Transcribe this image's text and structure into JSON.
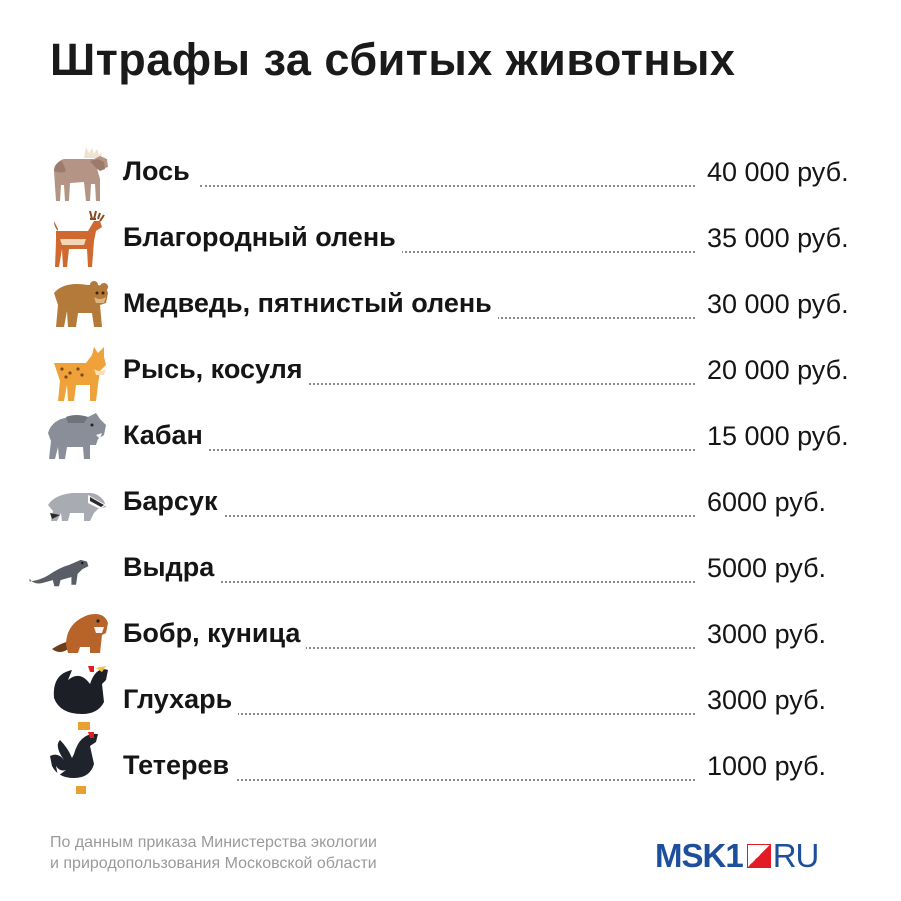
{
  "title": "Штрафы за сбитых животных",
  "rows": [
    {
      "name": "Лось",
      "price": "40 000 руб.",
      "icon": "moose-icon"
    },
    {
      "name": "Благородный олень",
      "price": "35 000 руб.",
      "icon": "red-deer-icon"
    },
    {
      "name": "Медведь, пятнистый олень",
      "price": "30 000 руб.",
      "icon": "bear-icon"
    },
    {
      "name": "Рысь, косуля",
      "price": "20 000 руб.",
      "icon": "lynx-icon"
    },
    {
      "name": "Кабан",
      "price": "15 000 руб.",
      "icon": "boar-icon"
    },
    {
      "name": "Барсук",
      "price": "6000 руб.",
      "icon": "badger-icon"
    },
    {
      "name": "Выдра",
      "price": "5000 руб.",
      "icon": "otter-icon"
    },
    {
      "name": "Бобр, куница",
      "price": "3000 руб.",
      "icon": "beaver-icon"
    },
    {
      "name": "Глухарь",
      "price": "3000 руб.",
      "icon": "capercaillie-icon"
    },
    {
      "name": "Тетерев",
      "price": "1000 руб.",
      "icon": "black-grouse-icon"
    }
  ],
  "footer": {
    "note_line1": "По данным приказа Министерства экологии",
    "note_line2": "и природопользования Московской области"
  },
  "logo": {
    "brand": "MSK1",
    "tld": "RU"
  },
  "colors": {
    "logo_blue": "#1d4f9c",
    "logo_red": "#e21b24",
    "leader_dots": "#8a8a8a",
    "footer_text": "#9a9a9a"
  }
}
